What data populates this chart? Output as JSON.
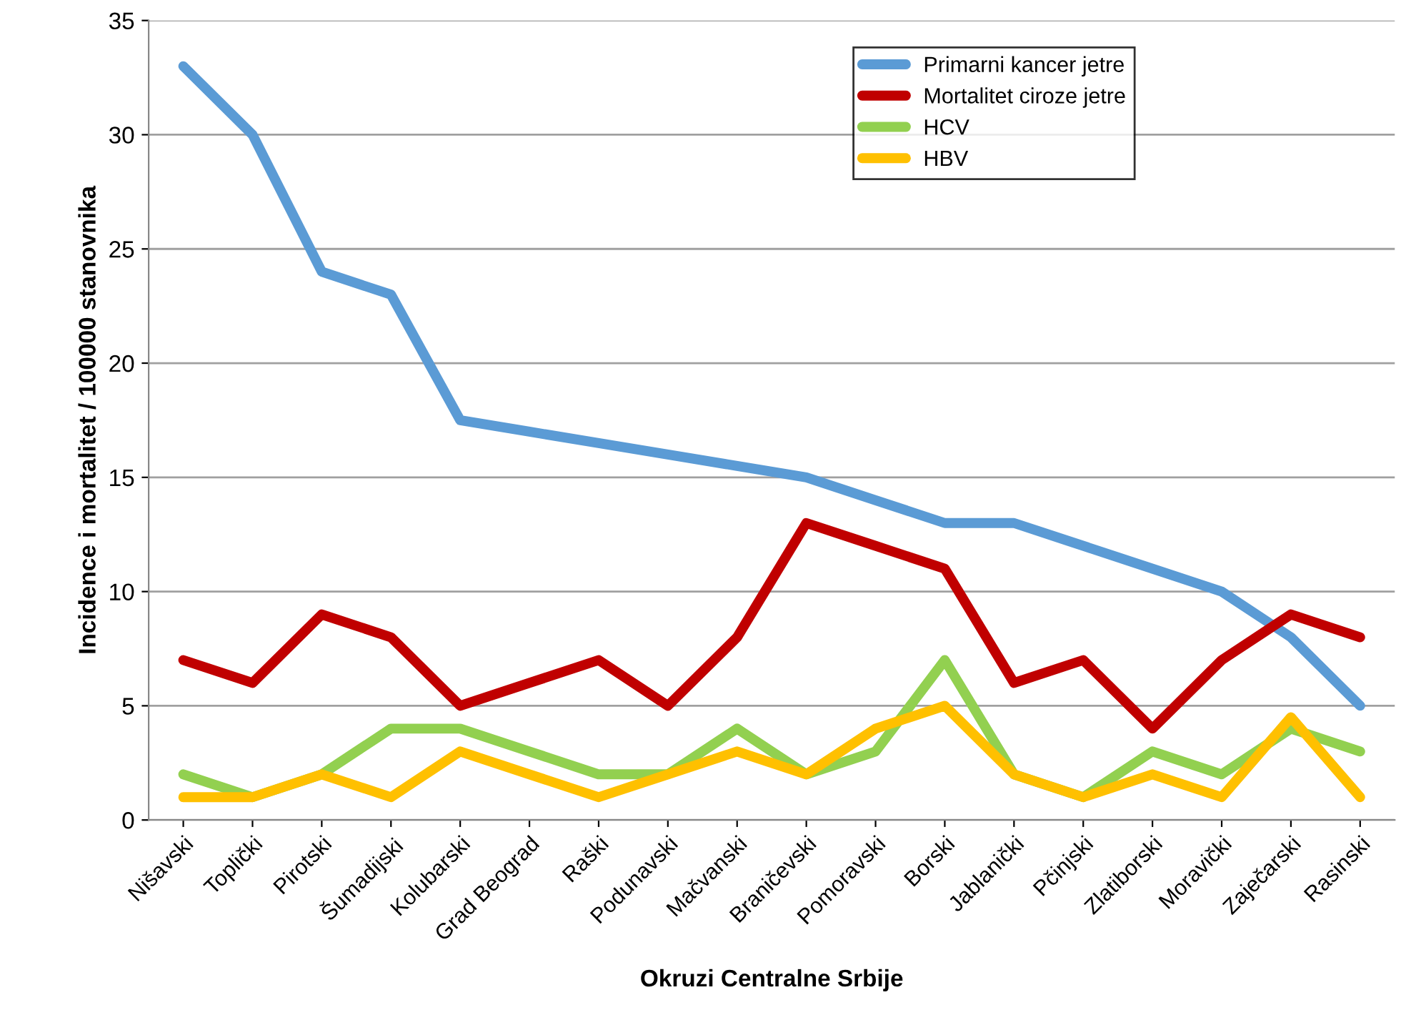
{
  "chart_data": {
    "type": "line",
    "xlabel": "Okruzi Centralne Srbije",
    "ylabel": "Incidence i mortalitet / 100000 stanovnika",
    "categories": [
      "Nišavski",
      "Toplički",
      "Pirotski",
      "Šumadijski",
      "Kolubarski",
      "Grad Beograd",
      "Raški",
      "Podunavski",
      "Mačvanski",
      "Braničevski",
      "Pomoravski",
      "Borski",
      "Jablanički",
      "Pčinjski",
      "Zlatiborski",
      "Moravički",
      "Zaječarski",
      "Rasinski"
    ],
    "series": [
      {
        "name": "Primarni kancer jetre",
        "color": "#5b9bd5",
        "values": [
          33,
          30,
          24,
          23,
          17.5,
          17,
          16.5,
          16,
          15.5,
          15,
          14,
          13,
          13,
          12,
          11,
          10,
          8,
          5
        ]
      },
      {
        "name": "Mortalitet ciroze jetre",
        "color": "#c00000",
        "values": [
          7,
          6,
          9,
          8,
          5,
          6,
          7,
          5,
          8,
          13,
          12,
          11,
          6,
          7,
          4,
          7,
          9,
          8
        ]
      },
      {
        "name": "HCV",
        "color": "#92d050",
        "values": [
          2,
          1,
          2,
          4,
          4,
          3,
          2,
          2,
          4,
          2,
          3,
          7,
          2,
          1,
          3,
          2,
          4,
          3
        ]
      },
      {
        "name": "HBV",
        "color": "#ffc000",
        "values": [
          1,
          1,
          2,
          1,
          3,
          2,
          1,
          2,
          3,
          2,
          4,
          5,
          2,
          1,
          2,
          1,
          4.5,
          1
        ]
      }
    ],
    "ylim": [
      0,
      35
    ],
    "yticks": [
      0,
      5,
      10,
      15,
      20,
      25,
      30,
      35
    ],
    "grid": "y",
    "legend": "top right",
    "marker": "none",
    "line_style": "solid"
  }
}
